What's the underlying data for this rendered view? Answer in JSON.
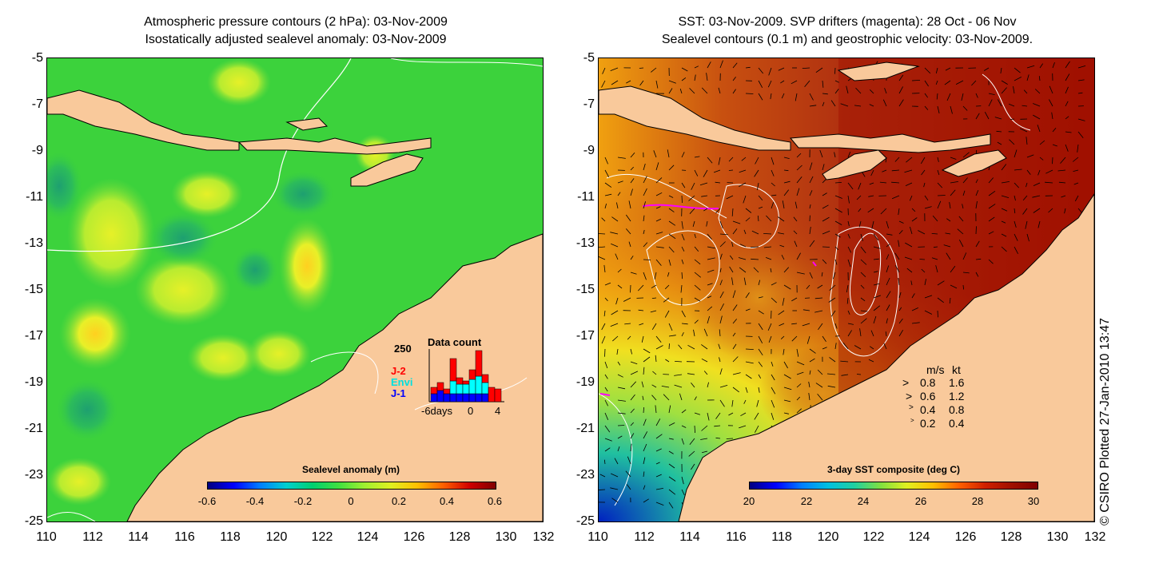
{
  "left_panel": {
    "title_line1": "Atmospheric pressure contours (2 hPa): 03-Nov-2009",
    "title_line2": "Isostatically adjusted sealevel anomaly: 03-Nov-2009",
    "colorbar": {
      "title": "Sealevel anomaly (m)",
      "labels": [
        "-0.6",
        "-0.4",
        "-0.2",
        "0",
        "0.2",
        "0.4",
        "0.6"
      ],
      "range": [
        -0.6,
        0.6
      ],
      "colors": [
        "#00007f",
        "#0000ff",
        "#007fff",
        "#00d0d0",
        "#00d070",
        "#40e040",
        "#a0f030",
        "#e0f020",
        "#ffc000",
        "#ff6000",
        "#d00000",
        "#800000"
      ]
    },
    "data_count": {
      "title": "Data count",
      "y_max_label": "250",
      "series_labels": [
        "J-2",
        "Envi",
        "J-1"
      ],
      "series_colors": [
        "#ff0000",
        "#00ffff",
        "#0000ff"
      ],
      "x_labels": [
        "-6days",
        "0",
        "4"
      ]
    }
  },
  "right_panel": {
    "title_line1": "SST: 03-Nov-2009. SVP drifters (magenta): 28 Oct - 06 Nov",
    "title_line2": "Sealevel contours (0.1 m) and geostrophic velocity: 03-Nov-2009.",
    "colorbar": {
      "title": "3-day SST composite (deg C)",
      "labels": [
        "20",
        "22",
        "24",
        "26",
        "28",
        "30"
      ],
      "range": [
        20,
        30
      ]
    },
    "velocity_legend": {
      "header_ms": "m/s",
      "header_kt": "kt",
      "rows": [
        {
          "ms": "0.8",
          "kt": "1.6"
        },
        {
          "ms": "0.6",
          "kt": "1.2"
        },
        {
          "ms": "0.4",
          "kt": "0.8"
        },
        {
          "ms": "0.2",
          "kt": "0.4"
        }
      ]
    }
  },
  "axes": {
    "y_ticks": [
      "-5",
      "-7",
      "-9",
      "-11",
      "-13",
      "-15",
      "-17",
      "-19",
      "-21",
      "-23",
      "-25"
    ],
    "x_ticks": [
      "110",
      "112",
      "114",
      "116",
      "118",
      "120",
      "122",
      "124",
      "126",
      "128",
      "130",
      "132"
    ],
    "lon_range": [
      110,
      132
    ],
    "lat_range": [
      -25,
      -5
    ]
  },
  "credit": "© CSIRO Plotted 27-Jan-2010 13:47",
  "colors": {
    "land": "#f9c99b",
    "ocean_green": "#3cd23c",
    "sst_red": "#a01000",
    "drifter": "#ff00ff"
  }
}
